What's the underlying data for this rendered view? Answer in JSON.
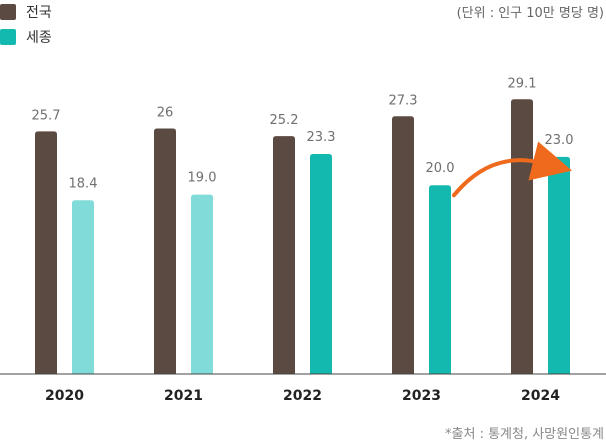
{
  "legend": {
    "national": {
      "label": "전국",
      "color": "#5a4a42"
    },
    "sejong": {
      "label": "세종",
      "color": "#13b9ae"
    }
  },
  "unit": "(단위 : 인구 10만 명당 명)",
  "source": "*출처 : 통계청, 사망원인통계",
  "chart_data": {
    "type": "bar",
    "categories": [
      "2020",
      "2021",
      "2022",
      "2023",
      "2024"
    ],
    "series": [
      {
        "name": "전국",
        "values": [
          25.7,
          26,
          25.2,
          27.3,
          29.1
        ],
        "labels": [
          "25.7",
          "26",
          "25.2",
          "27.3",
          "29.1"
        ],
        "color": "#5a4a42"
      },
      {
        "name": "세종",
        "values": [
          18.4,
          19.0,
          23.3,
          20.0,
          23.0
        ],
        "labels": [
          "18.4",
          "19.0",
          "23.3",
          "20.0",
          "23.0"
        ],
        "color": "#13b9ae",
        "light_color": "#81dbd8"
      }
    ],
    "highlighted_sejong_years": [
      "2022",
      "2023",
      "2024"
    ],
    "annotation": {
      "type": "arrow",
      "from": "2023 세종",
      "to": "2024 세종",
      "color": "#f06a1d"
    },
    "ylim": [
      0,
      30
    ],
    "grid": false,
    "legend_position": "top-left"
  }
}
